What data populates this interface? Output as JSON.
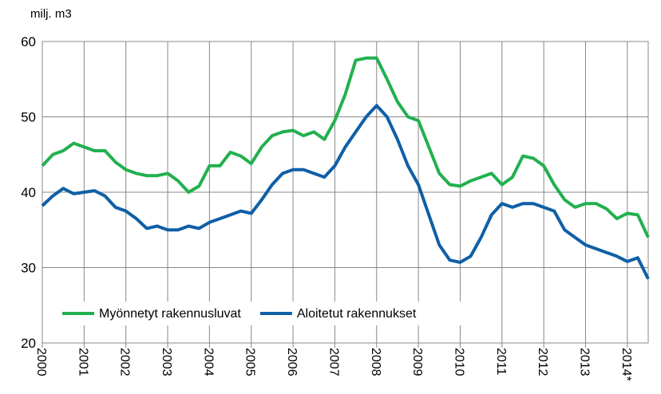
{
  "chart_data": {
    "type": "line",
    "y_label": "milj. m3",
    "x": [
      2000,
      2000.25,
      2000.5,
      2000.75,
      2001,
      2001.25,
      2001.5,
      2001.75,
      2002,
      2002.25,
      2002.5,
      2002.75,
      2003,
      2003.25,
      2003.5,
      2003.75,
      2004,
      2004.25,
      2004.5,
      2004.75,
      2005,
      2005.25,
      2005.5,
      2005.75,
      2006,
      2006.25,
      2006.5,
      2006.75,
      2007,
      2007.25,
      2007.5,
      2007.75,
      2008,
      2008.25,
      2008.5,
      2008.75,
      2009,
      2009.25,
      2009.5,
      2009.75,
      2010,
      2010.25,
      2010.5,
      2010.75,
      2011,
      2011.25,
      2011.5,
      2011.75,
      2012,
      2012.25,
      2012.5,
      2012.75,
      2013,
      2013.25,
      2013.5,
      2013.75,
      2014,
      2014.25,
      2014.5
    ],
    "series": [
      {
        "name": "Myönnetyt rakennusluvat",
        "color": "#22b04f",
        "values": [
          43.5,
          45,
          45.5,
          46.5,
          46,
          45.5,
          45.5,
          44,
          43,
          42.5,
          42.2,
          42.2,
          42.5,
          41.5,
          40,
          40.8,
          43.5,
          43.5,
          45.3,
          44.8,
          43.8,
          46,
          47.5,
          48,
          48.2,
          47.5,
          48,
          47,
          49.5,
          53,
          57.5,
          57.8,
          57.8,
          55,
          52,
          50,
          49.5,
          46,
          42.5,
          41,
          40.8,
          41.5,
          42,
          42.5,
          41,
          42,
          44.8,
          44.5,
          43.5,
          41,
          39,
          38,
          38.5,
          38.5,
          37.8,
          36.5,
          37.2,
          37,
          34
        ]
      },
      {
        "name": "Aloitetut rakennukset",
        "color": "#0f5fa6",
        "values": [
          38.2,
          39.5,
          40.5,
          39.8,
          40,
          40.2,
          39.5,
          38,
          37.5,
          36.5,
          35.2,
          35.5,
          35,
          35,
          35.5,
          35.2,
          36,
          36.5,
          37,
          37.5,
          37.2,
          39,
          41,
          42.5,
          43,
          43,
          42.5,
          42,
          43.5,
          46,
          48,
          50,
          51.5,
          50,
          47,
          43.5,
          41,
          37,
          33,
          31,
          30.7,
          31.5,
          34,
          37,
          38.5,
          38,
          38.5,
          38.5,
          38,
          37.5,
          35,
          34,
          33,
          32.5,
          32,
          31.5,
          30.8,
          31.3,
          28.5
        ]
      }
    ],
    "xlim": [
      2000,
      2014.5
    ],
    "xticks": [
      2000,
      2001,
      2002,
      2003,
      2004,
      2005,
      2006,
      2007,
      2008,
      2009,
      2010,
      2011,
      2012,
      2013,
      {
        "value": 2014,
        "label": "2014*"
      }
    ],
    "ylim": [
      20,
      60
    ],
    "yticks": [
      20,
      30,
      40,
      50,
      60
    ],
    "grid": true,
    "legend": "lower left"
  }
}
